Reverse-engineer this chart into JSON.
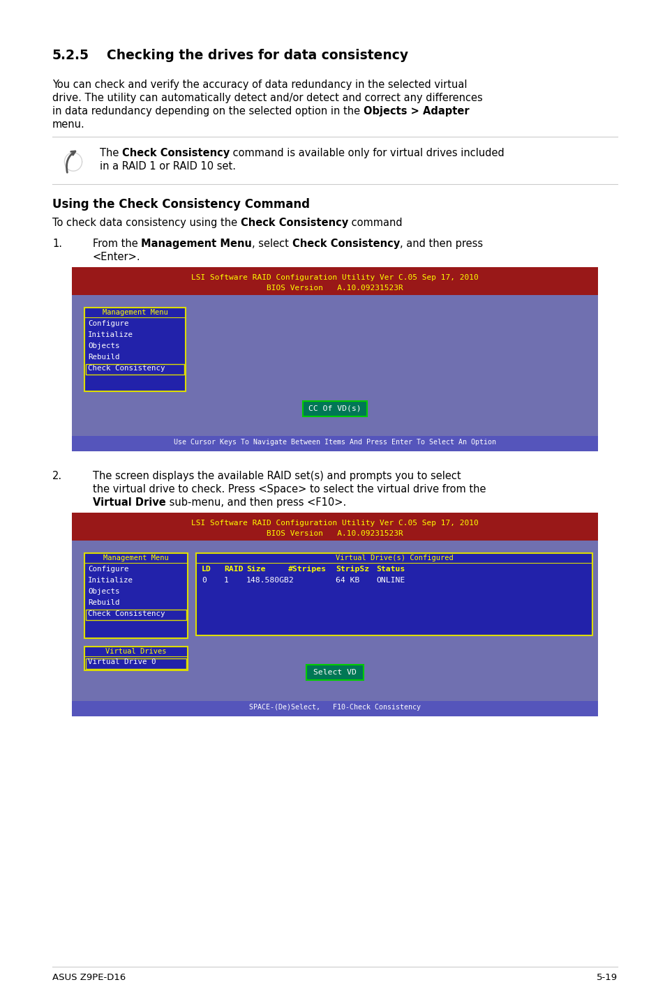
{
  "page_bg": "#ffffff",
  "footer_left": "ASUS Z9PE-D16",
  "footer_right": "5-19",
  "header_bg": "#991818",
  "screen_bg": "#7070b0",
  "menu_bg": "#2222aa",
  "menu_border_color": "#dddd00",
  "btn_bg": "#007755",
  "btn_border": "#00cc00",
  "footer_bar_bg": "#5555bb",
  "text_yellow": "#ffff00",
  "text_white": "#ffffff",
  "screen_header1": "LSI Software RAID Configuration Utility Ver C.05 Sep 17, 2010",
  "screen_header2": "BIOS Version   A.10.09231523R",
  "menu_items": [
    "Configure",
    "Initialize",
    "Objects",
    "Rebuild",
    "Check Consistency"
  ],
  "menu_selected": "Check Consistency",
  "screen1_btn": "CC Of VD(s)",
  "screen1_footer": "Use Cursor Keys To Navigate Between Items And Press Enter To Select An Option",
  "vd_cols": [
    "LD",
    "RAID",
    "Size",
    "#Stripes",
    "StripSz",
    "Status"
  ],
  "vd_data": [
    "0",
    "1",
    "148.580GB",
    "2",
    "64 KB",
    "ONLINE"
  ],
  "screen2_btn": "Select VD",
  "screen2_footer": "SPACE-(De)Select,   F10-Check Consistency"
}
